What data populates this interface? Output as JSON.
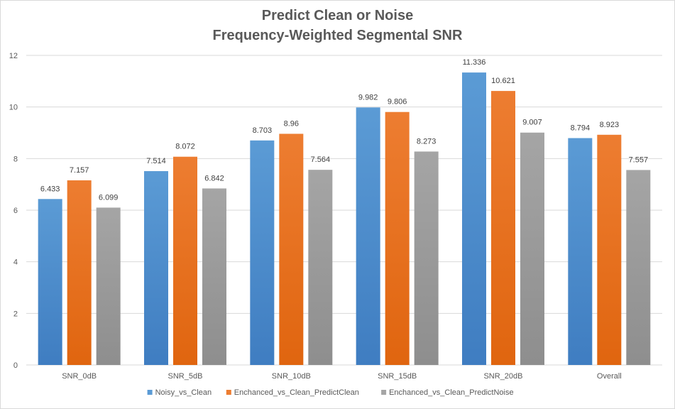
{
  "chart_data": {
    "type": "bar",
    "title": "Predict Clean or Noise",
    "subtitle": "Frequency-Weighted  Segmental SNR",
    "categories": [
      "SNR_0dB",
      "SNR_5dB",
      "SNR_10dB",
      "SNR_15dB",
      "SNR_20dB",
      "Overall"
    ],
    "series": [
      {
        "name": "Noisy_vs_Clean",
        "color": "#5B9BD5",
        "color_dark": "#3F7DC1",
        "values": [
          6.433,
          7.514,
          8.703,
          9.982,
          11.336,
          8.794
        ],
        "labels": [
          "6.433",
          "7.514",
          "8.703",
          "9.982",
          "11.336",
          "8.794"
        ]
      },
      {
        "name": "Enchanced_vs_Clean_PredictClean",
        "color": "#ED7D31",
        "color_dark": "#E0650F",
        "values": [
          7.157,
          8.072,
          8.96,
          9.806,
          10.621,
          8.923
        ],
        "labels": [
          "7.157",
          "8.072",
          "8.96",
          "9.806",
          "10.621",
          "8.923"
        ]
      },
      {
        "name": "Enchanced_vs_Clean_PredictNoise",
        "color": "#A5A5A5",
        "color_dark": "#8E8E8E",
        "values": [
          6.099,
          6.842,
          7.564,
          8.273,
          9.007,
          7.557
        ],
        "labels": [
          "6.099",
          "6.842",
          "7.564",
          "8.273",
          "9.007",
          "7.557"
        ]
      }
    ],
    "yticks": [
      "0",
      "2",
      "4",
      "6",
      "8",
      "10",
      "12"
    ],
    "ylim": [
      0,
      12
    ],
    "grid": true,
    "legend_position": "bottom"
  }
}
